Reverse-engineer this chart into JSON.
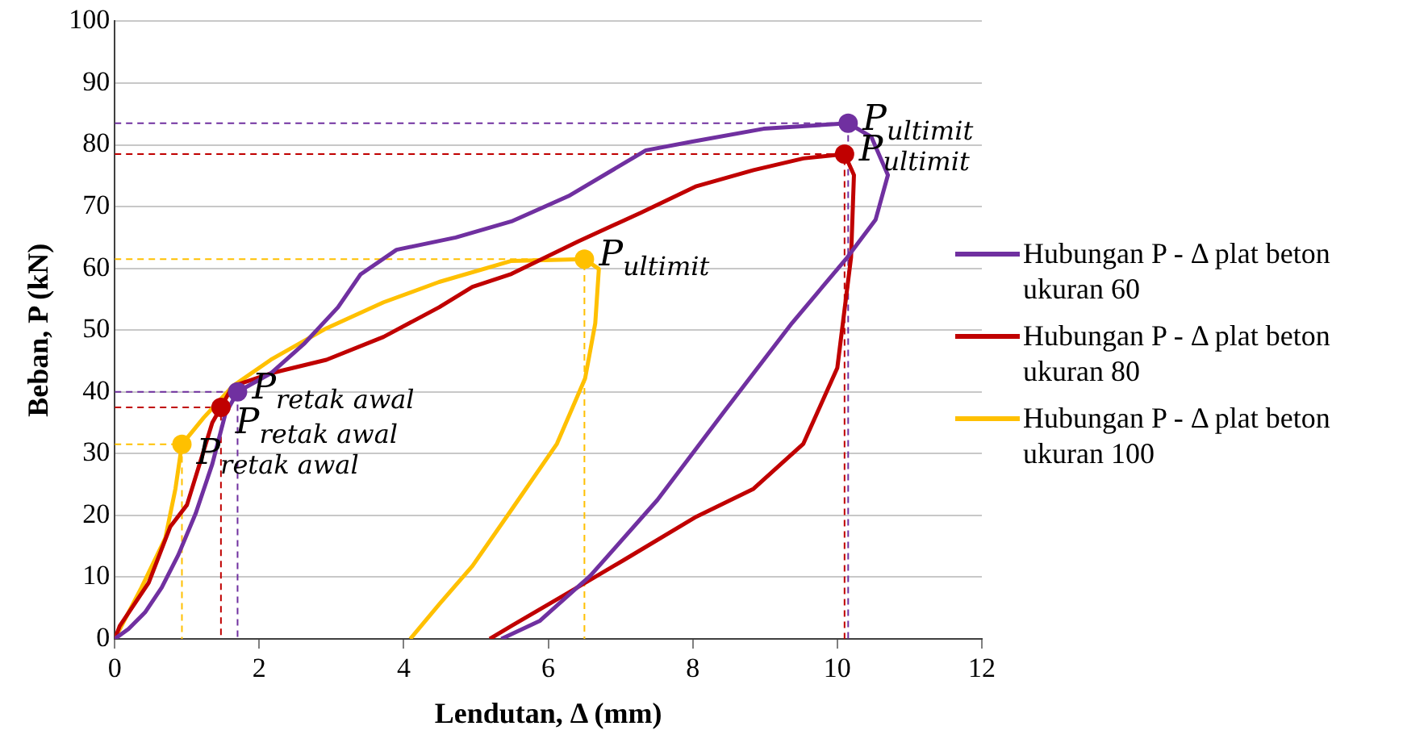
{
  "chart_data": {
    "type": "line",
    "xlabel": "Lendutan, Δ (mm)",
    "ylabel": "Beban, P (kN)",
    "xlim": [
      0,
      12
    ],
    "xticks": [
      0,
      2,
      4,
      6,
      8,
      10,
      12
    ],
    "ylim": [
      0,
      100
    ],
    "yticks": [
      0,
      10,
      20,
      30,
      40,
      50,
      60,
      70,
      80,
      90,
      100
    ],
    "grid": "y",
    "legend": "right",
    "marker": "none",
    "line_style": "solid",
    "series": [
      {
        "name": "Hubungan P - Δ plat beton ukuran 60",
        "color": "#7030a0",
        "x": [
          0,
          0.19,
          0.42,
          0.65,
          0.88,
          1.12,
          1.35,
          1.53,
          1.7,
          2.16,
          2.63,
          3.09,
          3.4,
          3.9,
          4.72,
          5.49,
          6.28,
          7.35,
          7.98,
          8.98,
          10.15,
          10.47,
          10.7,
          10.53,
          10.14,
          9.37,
          8.44,
          7.51,
          6.58,
          5.88,
          5.35
        ],
        "values": [
          0,
          1.6,
          4.3,
          8.3,
          13.6,
          20.3,
          28.3,
          36.4,
          40,
          43,
          47.9,
          53.7,
          59,
          63,
          65,
          67.6,
          71.7,
          79.1,
          80.5,
          82.6,
          83.5,
          81.3,
          75.1,
          67.9,
          61.8,
          51.1,
          36.9,
          22.5,
          10.2,
          2.9,
          0
        ]
      },
      {
        "name": "Hubungan P - Δ plat beton ukuran 80",
        "color": "#c00000",
        "x": [
          0,
          0.07,
          0.47,
          0.77,
          1.0,
          1.19,
          1.35,
          1.47,
          1.63,
          2.16,
          2.93,
          3.72,
          4.49,
          4.95,
          5.49,
          6.42,
          7.28,
          8.05,
          8.84,
          9.53,
          10.1,
          10.23,
          10.19,
          10.0,
          9.53,
          8.84,
          8.05,
          7.05,
          6.28,
          5.49,
          5.19
        ],
        "values": [
          0,
          2.1,
          9.1,
          18.2,
          21.7,
          28.9,
          35,
          37.5,
          40.9,
          43,
          45.2,
          48.9,
          53.7,
          57,
          59.1,
          64.4,
          69,
          73.3,
          75.9,
          77.8,
          78.5,
          75.1,
          61.8,
          43.9,
          31.6,
          24.3,
          19.8,
          12.8,
          7.5,
          2.1,
          0
        ]
      },
      {
        "name": "Hubungan P - Δ plat beton ukuran 100",
        "color": "#ffc000",
        "x": [
          0,
          0.37,
          0.7,
          0.84,
          0.93,
          1.23,
          1.63,
          2.16,
          2.93,
          3.72,
          4.49,
          5.49,
          6.5,
          6.7,
          6.65,
          6.51,
          6.12,
          5.49,
          4.95,
          4.49,
          4.09
        ],
        "values": [
          0,
          8.3,
          16.3,
          24.3,
          31.5,
          35.8,
          40.9,
          45.2,
          50.3,
          54.5,
          57.8,
          61.2,
          61.5,
          59.9,
          51.1,
          42.2,
          31.6,
          20.9,
          11.8,
          5.6,
          0
        ]
      },
      {
        "type": "scatter",
        "marker": "circle",
        "color": "#7030a0",
        "x": [
          1.7,
          10.15
        ],
        "values": [
          40,
          83.5
        ]
      },
      {
        "type": "scatter",
        "marker": "circle",
        "color": "#c00000",
        "x": [
          1.47,
          10.1
        ],
        "values": [
          37.5,
          78.5
        ]
      },
      {
        "type": "scatter",
        "marker": "circle",
        "color": "#ffc000",
        "x": [
          0.93,
          6.5
        ],
        "values": [
          31.5,
          61.5
        ]
      },
      {
        "line_style": "dashed",
        "color": "#7030a0",
        "x": [
          0,
          1.7,
          1.7
        ],
        "values": [
          40,
          40,
          0
        ]
      },
      {
        "line_style": "dashed",
        "color": "#7030a0",
        "x": [
          0,
          10.15,
          10.15
        ],
        "values": [
          83.5,
          83.5,
          0
        ]
      },
      {
        "line_style": "dashed",
        "color": "#c00000",
        "x": [
          0,
          1.47,
          1.47
        ],
        "values": [
          37.5,
          37.5,
          0
        ]
      },
      {
        "line_style": "dashed",
        "color": "#c00000",
        "x": [
          0,
          10.1,
          10.1
        ],
        "values": [
          78.5,
          78.5,
          0
        ]
      },
      {
        "line_style": "dashed",
        "color": "#ffc000",
        "x": [
          0,
          0.93,
          0.93
        ],
        "values": [
          31.5,
          31.5,
          0
        ]
      },
      {
        "line_style": "dashed",
        "color": "#ffc000",
        "x": [
          0,
          6.5,
          6.5
        ],
        "values": [
          61.5,
          61.5,
          0
        ]
      }
    ],
    "annotations": [
      {
        "text": "P$_{retak awal}$",
        "x": 1.7,
        "y": 40
      },
      {
        "text": "P$_{retak awal}$",
        "x": 1.47,
        "y": 37.5
      },
      {
        "text": "P$_{retak awal}$",
        "x": 0.93,
        "y": 31.5
      },
      {
        "text": "P$_{ultimit}$",
        "x": 10.15,
        "y": 83.5
      },
      {
        "text": "P$_{ultimit}$",
        "x": 10.1,
        "y": 78.5
      },
      {
        "text": "P$_{ultimit}$",
        "x": 6.5,
        "y": 61.5
      }
    ]
  }
}
